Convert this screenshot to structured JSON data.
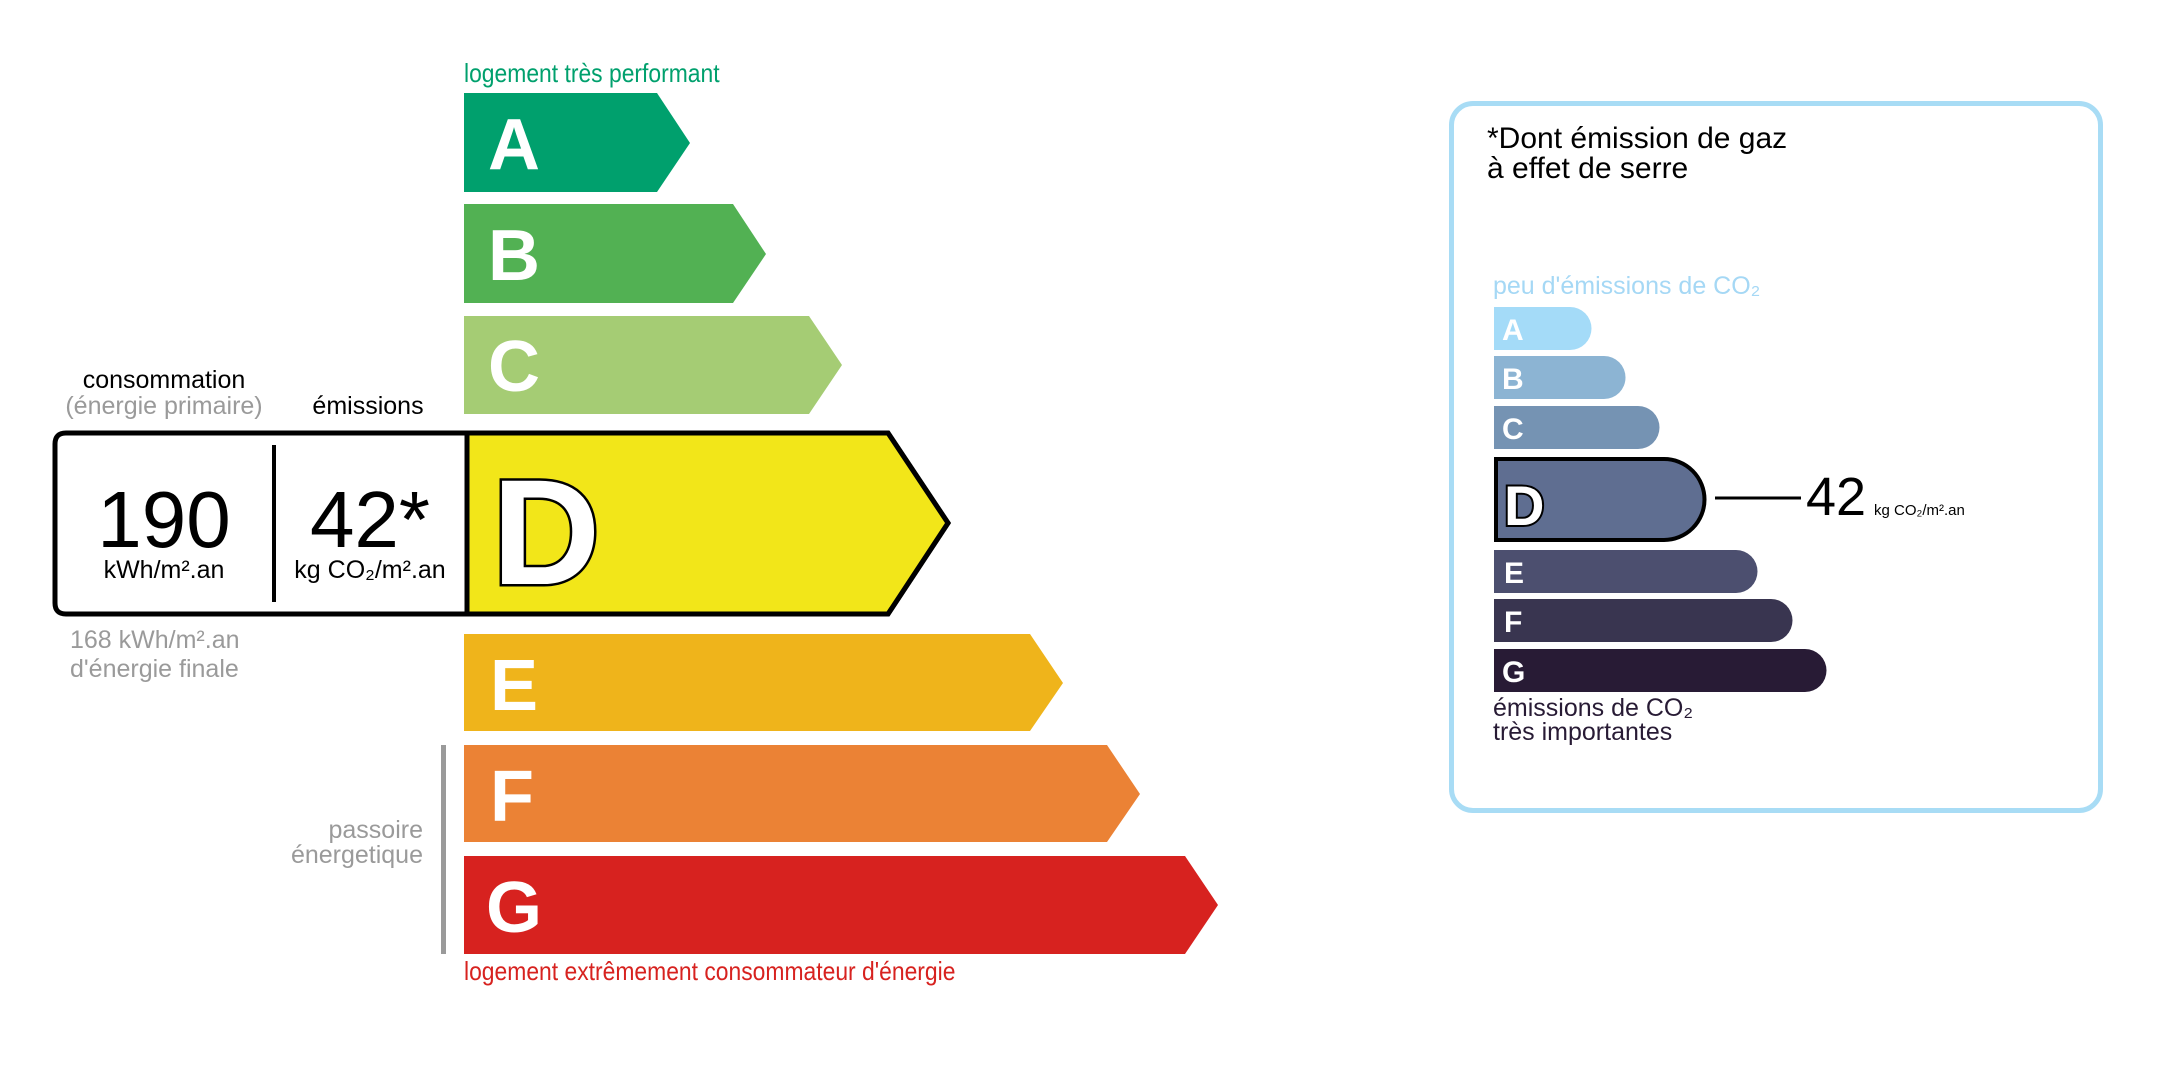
{
  "energy": {
    "top_label": "logement très performant",
    "bottom_label": "logement extrêmement consommateur d'énergie",
    "passoire_line1": "passoire",
    "passoire_line2": "énergetique",
    "classes": [
      {
        "letter": "A",
        "color": "#00a06d"
      },
      {
        "letter": "B",
        "color": "#52b153"
      },
      {
        "letter": "C",
        "color": "#a5cc74"
      },
      {
        "letter": "D",
        "color": "#f2e619"
      },
      {
        "letter": "E",
        "color": "#efb41b"
      },
      {
        "letter": "F",
        "color": "#eb8235"
      },
      {
        "letter": "G",
        "color": "#d7221f"
      }
    ],
    "current_class": "D",
    "consumption_header": "consommation",
    "consumption_subheader": "(énergie primaire)",
    "emissions_header": "émissions",
    "consumption_value": "190",
    "consumption_unit": "kWh/m².an",
    "emissions_value": "42*",
    "emissions_unit": "kg CO₂/m².an",
    "final_energy_line1": "168 kWh/m².an",
    "final_energy_line2": "d'énergie finale"
  },
  "ges": {
    "title_line1": "*Dont émission de gaz",
    "title_line2": "à effet de serre",
    "top_label": "peu d'émissions de CO₂",
    "bottom_label_line1": "émissions de CO₂",
    "bottom_label_line2": "très importantes",
    "classes": [
      {
        "letter": "A",
        "color": "#a4dbf8"
      },
      {
        "letter": "B",
        "color": "#8cb4d3"
      },
      {
        "letter": "C",
        "color": "#7593b3"
      },
      {
        "letter": "D",
        "color": "#5f6e91"
      },
      {
        "letter": "E",
        "color": "#4c4f6f"
      },
      {
        "letter": "F",
        "color": "#393550"
      },
      {
        "letter": "G",
        "color": "#281b35"
      }
    ],
    "current_class": "D",
    "value": "42",
    "unit": "kg CO₂/m².an",
    "border_color": "#a8dcf5"
  }
}
